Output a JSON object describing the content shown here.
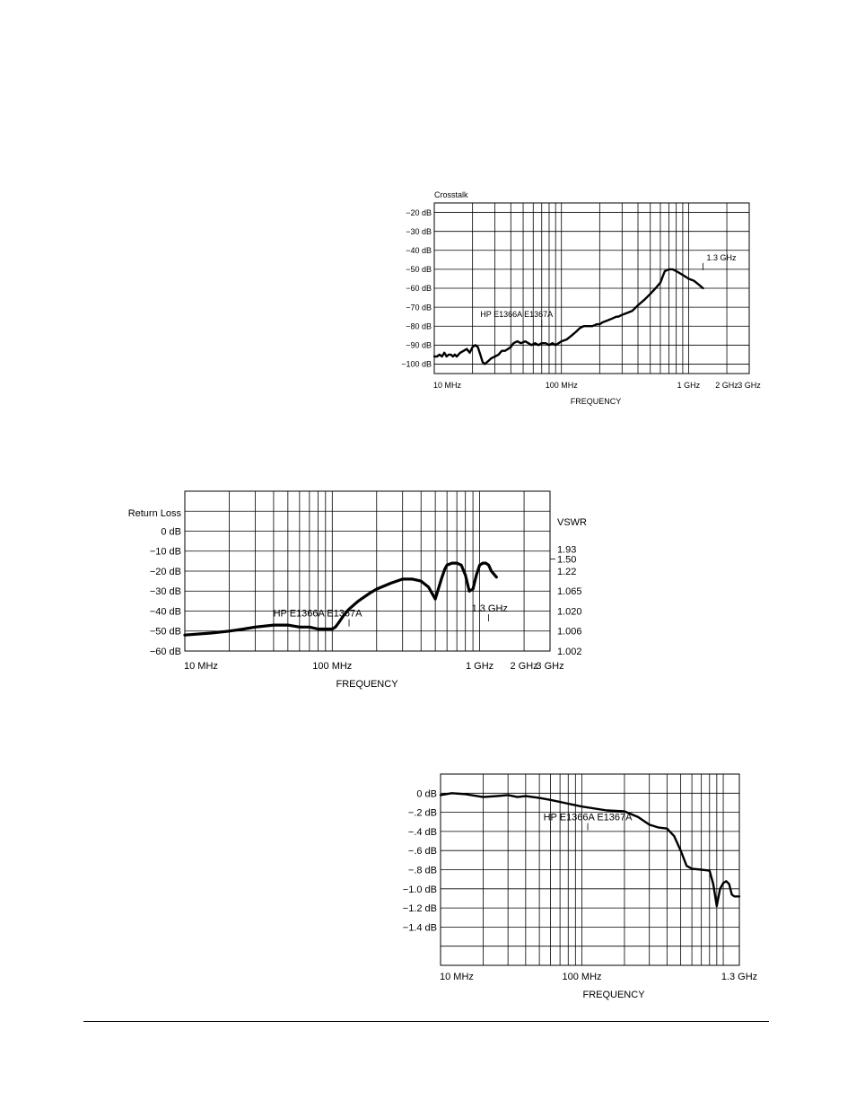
{
  "chart_data": [
    {
      "type": "line",
      "title": "Crosstalk",
      "xlabel": "FREQUENCY",
      "ylabel": "",
      "x_scale": "log",
      "xlim": [
        10,
        3000
      ],
      "ylim": [
        -105,
        -15
      ],
      "x_ticks": [
        {
          "value": 10,
          "label": "10 MHz"
        },
        {
          "value": 100,
          "label": "100 MHz"
        },
        {
          "value": 1000,
          "label": "1 GHz"
        },
        {
          "value": 2000,
          "label": "2 GHz"
        },
        {
          "value": 3000,
          "label": "3 GHz"
        }
      ],
      "y_ticks": [
        {
          "value": -20,
          "label": "−20 dB"
        },
        {
          "value": -30,
          "label": "−30 dB"
        },
        {
          "value": -40,
          "label": "−40 dB"
        },
        {
          "value": -50,
          "label": "−50 dB"
        },
        {
          "value": -60,
          "label": "−60 dB"
        },
        {
          "value": -70,
          "label": "−70 dB"
        },
        {
          "value": -80,
          "label": "−80 dB"
        },
        {
          "value": -90,
          "label": "−90 dB"
        },
        {
          "value": -100,
          "label": "−100 dB"
        }
      ],
      "grid": true,
      "annotations": [
        {
          "text": "HP  E1366A  E1367A",
          "x": 70,
          "y": -80
        },
        {
          "text": "1.3 GHz",
          "x": 1300,
          "y": -50
        }
      ],
      "series": [
        {
          "x": [
            10,
            10.5,
            11,
            11.5,
            12,
            12.5,
            13,
            13.5,
            14,
            14.5,
            15,
            16,
            17,
            18,
            19,
            20,
            21,
            22,
            23,
            24,
            25,
            26,
            27,
            28,
            30,
            32,
            34,
            36,
            38,
            40,
            42,
            45,
            48,
            52,
            55,
            58,
            62,
            66,
            70,
            75,
            80,
            85,
            90,
            95,
            100,
            110,
            120,
            130,
            140,
            150,
            160,
            175,
            190,
            200,
            210,
            230,
            250,
            270,
            280,
            300,
            330,
            360,
            400,
            450,
            500,
            550,
            600,
            650,
            700,
            750,
            800,
            850,
            900,
            950,
            1000,
            1100,
            1200,
            1300
          ],
          "y": [
            -96,
            -96,
            -95,
            -96,
            -94,
            -96,
            -95,
            -95,
            -96,
            -95,
            -96,
            -94,
            -93,
            -92,
            -94,
            -91,
            -90,
            -91,
            -95,
            -99,
            -100,
            -99,
            -98,
            -97,
            -96,
            -95,
            -93,
            -93,
            -92,
            -91,
            -89,
            -88,
            -89,
            -88,
            -89,
            -90,
            -89,
            -90,
            -89,
            -89,
            -90,
            -89,
            -90,
            -89,
            -88,
            -87,
            -85,
            -83,
            -81,
            -80,
            -80,
            -80,
            -79,
            -79,
            -78,
            -77,
            -76,
            -75,
            -75,
            -74,
            -73,
            -72,
            -69,
            -66,
            -63,
            -60,
            -57,
            -51,
            -50,
            -50,
            -51,
            -52,
            -53,
            -54,
            -55,
            -56,
            -58,
            -60
          ]
        }
      ]
    },
    {
      "type": "line",
      "title": "Return  Loss",
      "xlabel": "FREQUENCY",
      "ylabel": "VSWR",
      "x_scale": "log",
      "xlim": [
        10,
        3000
      ],
      "ylim": [
        -60,
        20
      ],
      "x_ticks": [
        {
          "value": 10,
          "label": "10 MHz"
        },
        {
          "value": 100,
          "label": "100 MHz"
        },
        {
          "value": 1000,
          "label": "1 GHz"
        },
        {
          "value": 2000,
          "label": "2 GHz"
        },
        {
          "value": 3000,
          "label": "3 GHz"
        }
      ],
      "y_ticks": [
        {
          "value": 0,
          "label": "0 dB"
        },
        {
          "value": -10,
          "label": "−10 dB"
        },
        {
          "value": -20,
          "label": "−20 dB"
        },
        {
          "value": -30,
          "label": "−30 dB"
        },
        {
          "value": -40,
          "label": "−40 dB"
        },
        {
          "value": -50,
          "label": "−50 dB"
        },
        {
          "value": -60,
          "label": "−60 dB"
        }
      ],
      "vswr_ticks": [
        {
          "value": -10,
          "label": "1.93"
        },
        {
          "value": -14,
          "label": "1.50"
        },
        {
          "value": -20,
          "label": "1.22"
        },
        {
          "value": -30,
          "label": "1.065"
        },
        {
          "value": -40,
          "label": "1.020"
        },
        {
          "value": -50,
          "label": "1.006"
        },
        {
          "value": -60,
          "label": "1.002"
        }
      ],
      "grid": true,
      "annotations": [
        {
          "text": "HP  E1366A  E1367A",
          "x": 130,
          "y": -45
        },
        {
          "text": "1.3 GHz",
          "x": 1150,
          "y": -38
        }
      ],
      "series": [
        {
          "x": [
            10,
            15,
            20,
            25,
            30,
            40,
            50,
            60,
            70,
            80,
            90,
            100,
            105,
            110,
            120,
            130,
            150,
            180,
            200,
            250,
            300,
            350,
            400,
            450,
            500,
            550,
            580,
            600,
            650,
            700,
            750,
            800,
            850,
            900,
            950,
            1000,
            1050,
            1100,
            1150,
            1200,
            1300
          ],
          "y": [
            -52,
            -51,
            -50,
            -49,
            -48,
            -47,
            -47,
            -48,
            -48,
            -49,
            -49,
            -49,
            -48,
            -46,
            -42,
            -39,
            -35,
            -31,
            -29,
            -26,
            -24,
            -24,
            -25,
            -28,
            -34,
            -24,
            -19,
            -17,
            -16,
            -16,
            -17,
            -22,
            -30,
            -29,
            -22,
            -17,
            -16,
            -16,
            -17,
            -20,
            -23
          ]
        }
      ]
    },
    {
      "type": "line",
      "title": "",
      "xlabel": "FREQUENCY",
      "ylabel": "",
      "x_scale": "log",
      "xlim": [
        10,
        1300
      ],
      "ylim": [
        -1.8,
        0.2
      ],
      "x_ticks": [
        {
          "value": 10,
          "label": "10 MHz"
        },
        {
          "value": 100,
          "label": "100 MHz"
        },
        {
          "value": 1300,
          "label": "1.3  GHz"
        }
      ],
      "y_ticks": [
        {
          "value": 0,
          "label": "0 dB"
        },
        {
          "value": -0.2,
          "label": "−.2  dB"
        },
        {
          "value": -0.4,
          "label": "−.4  dB"
        },
        {
          "value": -0.6,
          "label": "−.6  dB"
        },
        {
          "value": -0.8,
          "label": "−.8  dB"
        },
        {
          "value": -1.0,
          "label": "−1.0  dB"
        },
        {
          "value": -1.2,
          "label": "−1.2  dB"
        },
        {
          "value": -1.4,
          "label": "−1.4  dB"
        }
      ],
      "grid": true,
      "annotations": [
        {
          "text": "HP  E1366A  E1367A",
          "x": 110,
          "y": -0.35
        }
      ],
      "series": [
        {
          "x": [
            10,
            12,
            15,
            20,
            25,
            30,
            35,
            40,
            50,
            60,
            80,
            100,
            150,
            200,
            250,
            300,
            350,
            400,
            450,
            500,
            550,
            600,
            700,
            800,
            850,
            900,
            950,
            1000,
            1050,
            1100,
            1150,
            1200,
            1300
          ],
          "y": [
            -0.02,
            0.0,
            -0.01,
            -0.04,
            -0.03,
            -0.02,
            -0.04,
            -0.03,
            -0.05,
            -0.07,
            -0.11,
            -0.14,
            -0.18,
            -0.19,
            -0.25,
            -0.33,
            -0.36,
            -0.37,
            -0.45,
            -0.6,
            -0.76,
            -0.79,
            -0.8,
            -0.81,
            -0.95,
            -1.18,
            -1.0,
            -0.94,
            -0.92,
            -0.95,
            -1.06,
            -1.08,
            -1.08
          ]
        }
      ]
    }
  ]
}
